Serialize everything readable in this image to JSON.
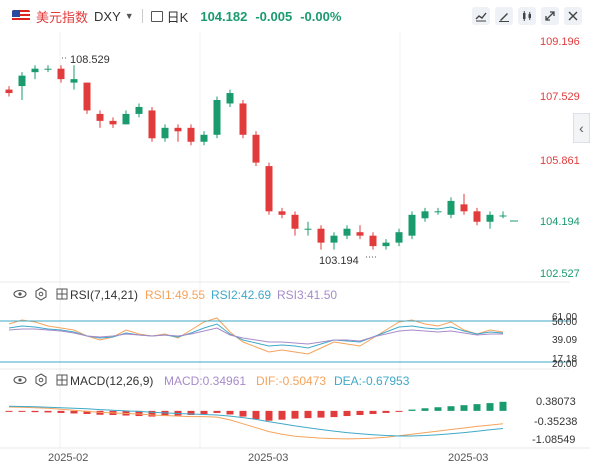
{
  "header": {
    "symbol_name": "美元指数",
    "symbol_code": "DXY",
    "period": "日K",
    "price": "104.182",
    "change": "-0.005",
    "change_pct": "-0.00%"
  },
  "icons": [
    "chart-type-icon",
    "draw-icon",
    "indicator-icon",
    "fullscreen-icon",
    "close-icon",
    "collapse-arrow-icon"
  ],
  "colors": {
    "up": "#e23b3b",
    "down": "#1a9b6e",
    "rsi1": "#f5a35c",
    "rsi2": "#3fa9c8",
    "rsi3": "#a78bc9",
    "dif": "#f5a35c",
    "dea": "#3fa9c8"
  },
  "main_chart": {
    "price_axis": [
      "109.196",
      "107.529",
      "105.861",
      "104.194",
      "102.527"
    ],
    "high_marker": "108.529",
    "low_marker": "103.194",
    "x_axis": [
      "2025-02",
      "2025-03",
      "2025-03"
    ]
  },
  "rsi": {
    "name": "RSI(7,14,21)",
    "rsi1": "RSI1:49.55",
    "rsi2": "RSI2:42.69",
    "rsi3": "RSI3:41.50",
    "axis": [
      "61.00",
      "50.00",
      "39.09",
      "17.18",
      "20.00"
    ]
  },
  "macd": {
    "name": "MACD(12,26,9)",
    "macd": "MACD:0.34961",
    "dif": "DIF:-0.50473",
    "dea": "DEA:-0.67953",
    "axis": [
      "0.38073",
      "-0.35238",
      "-1.08549"
    ]
  },
  "chart_data": {
    "type": "candlestick",
    "candles": [
      {
        "o": 107.8,
        "c": 107.7,
        "h": 107.9,
        "l": 107.6
      },
      {
        "o": 107.9,
        "c": 108.2,
        "h": 108.3,
        "l": 107.5
      },
      {
        "o": 108.3,
        "c": 108.4,
        "h": 108.5,
        "l": 108.1
      },
      {
        "o": 108.4,
        "c": 108.4,
        "h": 108.5,
        "l": 108.3
      },
      {
        "o": 108.4,
        "c": 108.1,
        "h": 108.5,
        "l": 108.0
      },
      {
        "o": 108.0,
        "c": 108.1,
        "h": 108.5,
        "l": 107.8
      },
      {
        "o": 108.0,
        "c": 107.2,
        "h": 108.0,
        "l": 107.1
      },
      {
        "o": 107.1,
        "c": 106.9,
        "h": 107.2,
        "l": 106.7
      },
      {
        "o": 106.9,
        "c": 106.8,
        "h": 107.0,
        "l": 106.7
      },
      {
        "o": 106.8,
        "c": 107.1,
        "h": 107.2,
        "l": 106.8
      },
      {
        "o": 107.1,
        "c": 107.3,
        "h": 107.4,
        "l": 107.0
      },
      {
        "o": 107.2,
        "c": 106.4,
        "h": 107.3,
        "l": 106.3
      },
      {
        "o": 106.4,
        "c": 106.7,
        "h": 106.8,
        "l": 106.3
      },
      {
        "o": 106.7,
        "c": 106.6,
        "h": 106.8,
        "l": 106.3
      },
      {
        "o": 106.7,
        "c": 106.3,
        "h": 106.8,
        "l": 106.2
      },
      {
        "o": 106.3,
        "c": 106.5,
        "h": 106.6,
        "l": 106.2
      },
      {
        "o": 106.5,
        "c": 107.5,
        "h": 107.6,
        "l": 106.4
      },
      {
        "o": 107.4,
        "c": 107.7,
        "h": 107.8,
        "l": 107.3
      },
      {
        "o": 107.4,
        "c": 106.5,
        "h": 107.5,
        "l": 106.4
      },
      {
        "o": 106.5,
        "c": 105.7,
        "h": 106.6,
        "l": 105.6
      },
      {
        "o": 105.6,
        "c": 104.3,
        "h": 105.7,
        "l": 104.2
      },
      {
        "o": 104.3,
        "c": 104.2,
        "h": 104.4,
        "l": 104.1
      },
      {
        "o": 104.2,
        "c": 103.8,
        "h": 104.3,
        "l": 103.6
      },
      {
        "o": 103.8,
        "c": 103.8,
        "h": 104.0,
        "l": 103.6
      },
      {
        "o": 103.8,
        "c": 103.4,
        "h": 103.9,
        "l": 103.2
      },
      {
        "o": 103.4,
        "c": 103.6,
        "h": 103.7,
        "l": 103.2
      },
      {
        "o": 103.6,
        "c": 103.8,
        "h": 103.9,
        "l": 103.5
      },
      {
        "o": 103.7,
        "c": 103.6,
        "h": 103.9,
        "l": 103.5
      },
      {
        "o": 103.6,
        "c": 103.3,
        "h": 103.7,
        "l": 103.2
      },
      {
        "o": 103.3,
        "c": 103.4,
        "h": 103.5,
        "l": 103.2
      },
      {
        "o": 103.4,
        "c": 103.7,
        "h": 103.8,
        "l": 103.3
      },
      {
        "o": 103.6,
        "c": 104.2,
        "h": 104.3,
        "l": 103.5
      },
      {
        "o": 104.1,
        "c": 104.3,
        "h": 104.4,
        "l": 104.0
      },
      {
        "o": 104.3,
        "c": 104.3,
        "h": 104.4,
        "l": 104.2
      },
      {
        "o": 104.2,
        "c": 104.6,
        "h": 104.7,
        "l": 104.1
      },
      {
        "o": 104.5,
        "c": 104.3,
        "h": 104.8,
        "l": 104.2
      },
      {
        "o": 104.3,
        "c": 104.0,
        "h": 104.4,
        "l": 103.9
      },
      {
        "o": 104.0,
        "c": 104.2,
        "h": 104.3,
        "l": 103.8
      },
      {
        "o": 104.18,
        "c": 104.18,
        "h": 104.3,
        "l": 104.1
      }
    ],
    "rsi1": [
      58,
      62,
      60,
      56,
      54,
      52,
      46,
      42,
      45,
      52,
      48,
      46,
      48,
      44,
      52,
      60,
      64,
      50,
      40,
      35,
      30,
      32,
      30,
      28,
      34,
      40,
      38,
      36,
      44,
      52,
      60,
      62,
      58,
      56,
      60,
      52,
      48,
      52,
      50
    ],
    "rsi2": [
      54,
      56,
      55,
      53,
      52,
      50,
      46,
      44,
      45,
      49,
      47,
      46,
      47,
      45,
      49,
      54,
      58,
      48,
      42,
      39,
      36,
      37,
      36,
      34,
      38,
      42,
      41,
      40,
      45,
      50,
      55,
      56,
      54,
      53,
      55,
      51,
      48,
      50,
      49
    ],
    "rsi3": [
      52,
      53,
      53,
      52,
      51,
      49,
      46,
      45,
      46,
      48,
      47,
      46,
      47,
      46,
      48,
      51,
      54,
      47,
      44,
      42,
      40,
      40,
      39,
      38,
      40,
      42,
      42,
      41,
      45,
      48,
      51,
      52,
      51,
      50,
      51,
      49,
      47,
      48,
      48
    ],
    "macd_hist": [
      -0.02,
      -0.03,
      -0.05,
      -0.06,
      -0.08,
      -0.1,
      -0.12,
      -0.15,
      -0.16,
      -0.18,
      -0.2,
      -0.22,
      -0.2,
      -0.18,
      -0.16,
      -0.12,
      -0.08,
      -0.14,
      -0.22,
      -0.32,
      -0.38,
      -0.34,
      -0.3,
      -0.28,
      -0.26,
      -0.24,
      -0.2,
      -0.16,
      -0.12,
      -0.08,
      -0.02,
      0.05,
      0.1,
      0.14,
      0.18,
      0.22,
      0.26,
      0.3,
      0.35
    ],
    "dif": [
      0.15,
      0.14,
      0.12,
      0.1,
      0.06,
      0.02,
      -0.02,
      -0.06,
      -0.08,
      -0.1,
      -0.12,
      -0.16,
      -0.18,
      -0.2,
      -0.22,
      -0.22,
      -0.24,
      -0.35,
      -0.5,
      -0.65,
      -0.8,
      -0.9,
      -0.98,
      -1.02,
      -1.05,
      -1.07,
      -1.08,
      -1.07,
      -1.05,
      -1.02,
      -0.96,
      -0.9,
      -0.84,
      -0.78,
      -0.72,
      -0.66,
      -0.6,
      -0.55,
      -0.5
    ],
    "dea": [
      0.18,
      0.17,
      0.16,
      0.14,
      0.12,
      0.1,
      0.08,
      0.05,
      0.02,
      0.0,
      -0.02,
      -0.05,
      -0.08,
      -0.1,
      -0.12,
      -0.14,
      -0.16,
      -0.2,
      -0.26,
      -0.33,
      -0.42,
      -0.5,
      -0.58,
      -0.65,
      -0.72,
      -0.78,
      -0.84,
      -0.88,
      -0.92,
      -0.95,
      -0.97,
      -0.97,
      -0.95,
      -0.92,
      -0.88,
      -0.84,
      -0.79,
      -0.73,
      -0.68
    ]
  }
}
